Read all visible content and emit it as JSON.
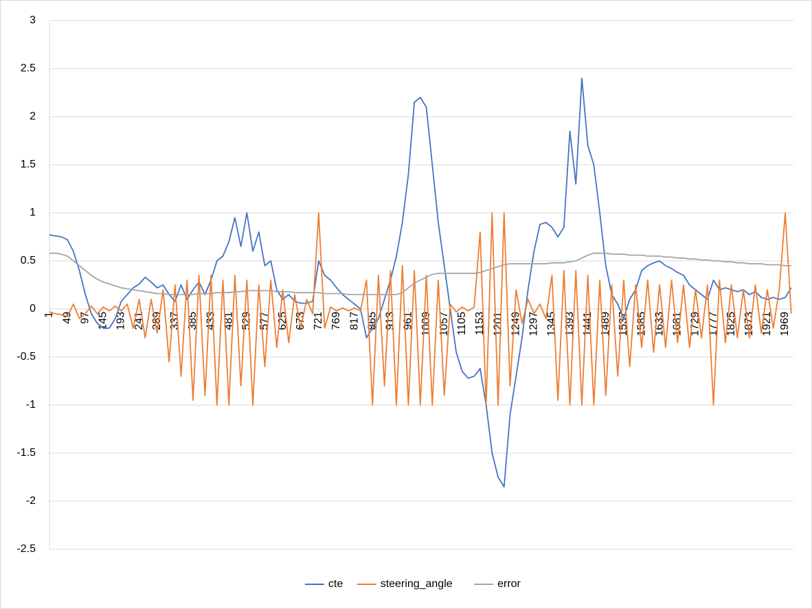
{
  "chart_data": {
    "type": "line",
    "x": [
      1,
      17,
      33,
      49,
      65,
      81,
      97,
      113,
      129,
      145,
      161,
      177,
      193,
      209,
      225,
      241,
      257,
      273,
      289,
      305,
      321,
      337,
      353,
      369,
      385,
      401,
      417,
      433,
      449,
      465,
      481,
      497,
      513,
      529,
      545,
      561,
      577,
      593,
      609,
      625,
      641,
      657,
      673,
      689,
      705,
      721,
      737,
      753,
      769,
      785,
      801,
      817,
      833,
      849,
      865,
      881,
      897,
      913,
      929,
      945,
      961,
      977,
      993,
      1009,
      1025,
      1041,
      1057,
      1073,
      1089,
      1105,
      1121,
      1137,
      1153,
      1169,
      1185,
      1201,
      1217,
      1233,
      1249,
      1265,
      1281,
      1297,
      1313,
      1329,
      1345,
      1361,
      1377,
      1393,
      1409,
      1425,
      1441,
      1457,
      1473,
      1489,
      1505,
      1521,
      1537,
      1553,
      1569,
      1585,
      1601,
      1617,
      1633,
      1649,
      1665,
      1681,
      1697,
      1713,
      1729,
      1745,
      1761,
      1777,
      1793,
      1809,
      1825,
      1841,
      1857,
      1873,
      1889,
      1905,
      1921,
      1937,
      1953,
      1969,
      1985
    ],
    "xlim": [
      1,
      1991
    ],
    "xticks": [
      1,
      49,
      97,
      145,
      193,
      241,
      289,
      337,
      385,
      433,
      481,
      529,
      577,
      625,
      673,
      721,
      769,
      817,
      865,
      913,
      961,
      1009,
      1057,
      1105,
      1153,
      1201,
      1249,
      1297,
      1345,
      1393,
      1441,
      1489,
      1537,
      1585,
      1633,
      1681,
      1729,
      1777,
      1825,
      1873,
      1921,
      1969
    ],
    "ylim": [
      -2.5,
      3
    ],
    "yticks": [
      3,
      2.5,
      2,
      1.5,
      1,
      0.5,
      0,
      -0.5,
      -1,
      -1.5,
      -2,
      -2.5
    ],
    "grid": true,
    "legend": "bottom",
    "series": [
      {
        "name": "cte",
        "color": "#4472c4",
        "values": [
          0.77,
          0.76,
          0.75,
          0.72,
          0.6,
          0.4,
          0.15,
          -0.05,
          -0.15,
          -0.2,
          -0.2,
          -0.1,
          0.08,
          0.15,
          0.22,
          0.26,
          0.33,
          0.28,
          0.22,
          0.25,
          0.15,
          0.08,
          0.25,
          0.1,
          0.2,
          0.28,
          0.15,
          0.3,
          0.5,
          0.55,
          0.7,
          0.95,
          0.65,
          1.0,
          0.6,
          0.8,
          0.45,
          0.5,
          0.2,
          0.1,
          0.15,
          0.08,
          0.06,
          0.06,
          0.08,
          0.5,
          0.35,
          0.3,
          0.22,
          0.15,
          0.1,
          0.05,
          0.0,
          -0.3,
          -0.2,
          -0.1,
          0.1,
          0.3,
          0.55,
          0.9,
          1.4,
          2.15,
          2.2,
          2.1,
          1.5,
          0.9,
          0.45,
          0.0,
          -0.45,
          -0.65,
          -0.72,
          -0.7,
          -0.62,
          -1.0,
          -1.5,
          -1.75,
          -1.85,
          -1.1,
          -0.7,
          -0.3,
          0.2,
          0.6,
          0.88,
          0.9,
          0.85,
          0.75,
          0.85,
          1.85,
          1.3,
          2.4,
          1.7,
          1.5,
          1.0,
          0.45,
          0.15,
          0.05,
          -0.1,
          0.1,
          0.2,
          0.4,
          0.45,
          0.48,
          0.5,
          0.45,
          0.42,
          0.38,
          0.35,
          0.25,
          0.2,
          0.15,
          0.1,
          0.3,
          0.2,
          0.22,
          0.2,
          0.18,
          0.2,
          0.15,
          0.18,
          0.12,
          0.1,
          0.12,
          0.1,
          0.12,
          0.22
        ]
      },
      {
        "name": "steering_angle",
        "color": "#ed7d31",
        "values": [
          -0.03,
          -0.05,
          -0.06,
          -0.08,
          0.05,
          -0.1,
          -0.05,
          0.03,
          -0.05,
          0.02,
          -0.02,
          0.03,
          -0.02,
          0.05,
          -0.2,
          0.1,
          -0.3,
          0.1,
          -0.25,
          0.2,
          -0.55,
          0.25,
          -0.7,
          0.3,
          -0.95,
          0.35,
          -0.9,
          0.35,
          -1.0,
          0.3,
          -1.0,
          0.35,
          -0.8,
          0.3,
          -1.0,
          0.25,
          -0.6,
          0.3,
          -0.4,
          0.2,
          -0.35,
          0.15,
          -0.2,
          0.1,
          -0.05,
          1.0,
          -0.2,
          0.02,
          -0.02,
          0.01,
          -0.02,
          0.01,
          -0.02,
          0.3,
          -1.0,
          0.35,
          -0.8,
          0.4,
          -1.0,
          0.45,
          -1.0,
          0.4,
          -1.0,
          0.35,
          -1.0,
          0.3,
          -0.9,
          0.05,
          -0.03,
          0.02,
          -0.02,
          0.02,
          0.8,
          -1.0,
          1.0,
          -1.0,
          1.0,
          -0.8,
          0.2,
          -0.15,
          0.1,
          -0.05,
          0.05,
          -0.1,
          0.35,
          -0.95,
          0.4,
          -1.0,
          0.4,
          -1.0,
          0.35,
          -1.0,
          0.3,
          -0.9,
          0.25,
          -0.7,
          0.3,
          -0.6,
          0.25,
          -0.4,
          0.3,
          -0.45,
          0.25,
          -0.4,
          0.3,
          -0.35,
          0.25,
          -0.4,
          0.2,
          -0.3,
          0.25,
          -1.0,
          0.3,
          -0.35,
          0.25,
          -0.3,
          0.2,
          -0.3,
          0.25,
          -0.25,
          0.2,
          -0.2,
          0.2,
          1.0,
          -0.05
        ]
      },
      {
        "name": "error",
        "color": "#a5a5a5",
        "values": [
          0.58,
          0.58,
          0.57,
          0.55,
          0.5,
          0.45,
          0.4,
          0.35,
          0.31,
          0.28,
          0.26,
          0.24,
          0.22,
          0.21,
          0.2,
          0.19,
          0.18,
          0.17,
          0.16,
          0.16,
          0.15,
          0.15,
          0.15,
          0.15,
          0.15,
          0.16,
          0.16,
          0.16,
          0.17,
          0.17,
          0.17,
          0.18,
          0.18,
          0.19,
          0.19,
          0.19,
          0.19,
          0.19,
          0.18,
          0.18,
          0.18,
          0.17,
          0.17,
          0.17,
          0.17,
          0.17,
          0.16,
          0.16,
          0.16,
          0.16,
          0.15,
          0.15,
          0.15,
          0.15,
          0.15,
          0.15,
          0.15,
          0.15,
          0.15,
          0.17,
          0.22,
          0.27,
          0.3,
          0.33,
          0.36,
          0.37,
          0.37,
          0.37,
          0.37,
          0.37,
          0.37,
          0.37,
          0.38,
          0.4,
          0.42,
          0.44,
          0.46,
          0.47,
          0.47,
          0.47,
          0.47,
          0.47,
          0.47,
          0.47,
          0.48,
          0.48,
          0.48,
          0.49,
          0.5,
          0.53,
          0.56,
          0.58,
          0.58,
          0.58,
          0.57,
          0.57,
          0.57,
          0.56,
          0.56,
          0.56,
          0.55,
          0.55,
          0.55,
          0.54,
          0.54,
          0.53,
          0.53,
          0.52,
          0.52,
          0.51,
          0.51,
          0.5,
          0.5,
          0.49,
          0.49,
          0.48,
          0.48,
          0.47,
          0.47,
          0.47,
          0.46,
          0.46,
          0.46,
          0.45,
          0.45
        ]
      }
    ]
  }
}
